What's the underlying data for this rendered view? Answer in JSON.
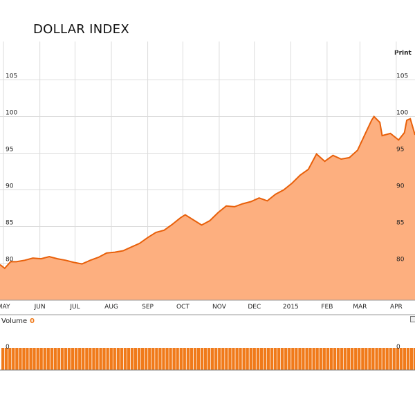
{
  "header": {
    "title": "DOLLAR INDEX",
    "print_label": "Print"
  },
  "volume": {
    "label": "Volume",
    "value": "0"
  },
  "colors": {
    "line": "#e8600a",
    "fill": "#fdaf7f",
    "volume_bar": "#f07a1a",
    "volume_label": "#f07a1a"
  },
  "chart_data": [
    {
      "type": "area",
      "title": "DOLLAR INDEX",
      "xlabel": "",
      "ylabel": "",
      "x_tick_labels": [
        "MAY",
        "JUN",
        "JUL",
        "AUG",
        "SEP",
        "OCT",
        "NOV",
        "DEC",
        "2015",
        "FEB",
        "MAR",
        "APR"
      ],
      "y_ticks": [
        80,
        85,
        90,
        95,
        100,
        105
      ],
      "ylim": [
        74.8,
        110
      ],
      "grid": true,
      "y_axis_labels": "left and right",
      "series": [
        {
          "x": [
            "2014-04-28",
            "2014-05-02",
            "2014-05-07",
            "2014-05-12",
            "2014-05-19",
            "2014-05-26",
            "2014-06-02",
            "2014-06-09",
            "2014-06-16",
            "2014-06-23",
            "2014-06-30",
            "2014-07-07",
            "2014-07-14",
            "2014-07-21",
            "2014-07-28",
            "2014-08-04",
            "2014-08-11",
            "2014-08-18",
            "2014-08-25",
            "2014-09-01",
            "2014-09-08",
            "2014-09-15",
            "2014-09-22",
            "2014-09-29",
            "2014-10-03",
            "2014-10-10",
            "2014-10-17",
            "2014-10-24",
            "2014-10-31",
            "2014-11-07",
            "2014-11-14",
            "2014-11-21",
            "2014-11-28",
            "2014-12-05",
            "2014-12-12",
            "2014-12-19",
            "2014-12-26",
            "2015-01-02",
            "2015-01-09",
            "2015-01-16",
            "2015-01-23",
            "2015-01-30",
            "2015-02-06",
            "2015-02-13",
            "2015-02-20",
            "2015-02-27",
            "2015-03-06",
            "2015-03-11",
            "2015-03-13",
            "2015-03-18",
            "2015-03-20",
            "2015-03-27",
            "2015-04-03",
            "2015-04-08",
            "2015-04-10",
            "2015-04-13",
            "2015-04-17"
          ],
          "values": [
            79.8,
            79.3,
            80.2,
            80.2,
            80.4,
            80.7,
            80.6,
            80.9,
            80.6,
            80.4,
            80.1,
            79.9,
            80.4,
            80.8,
            81.4,
            81.5,
            81.7,
            82.2,
            82.7,
            83.5,
            84.2,
            84.5,
            85.3,
            86.2,
            86.6,
            85.9,
            85.2,
            85.8,
            86.9,
            87.8,
            87.7,
            88.1,
            88.4,
            88.9,
            88.5,
            89.4,
            90.0,
            90.9,
            92.0,
            92.8,
            94.9,
            93.9,
            94.7,
            94.2,
            94.4,
            95.4,
            97.8,
            99.5,
            100.0,
            99.2,
            97.4,
            97.7,
            96.8,
            97.8,
            99.5,
            99.7,
            97.5
          ]
        }
      ]
    },
    {
      "type": "bar",
      "title": "Volume",
      "y_ticks": [
        0
      ],
      "values_all": 0
    }
  ]
}
